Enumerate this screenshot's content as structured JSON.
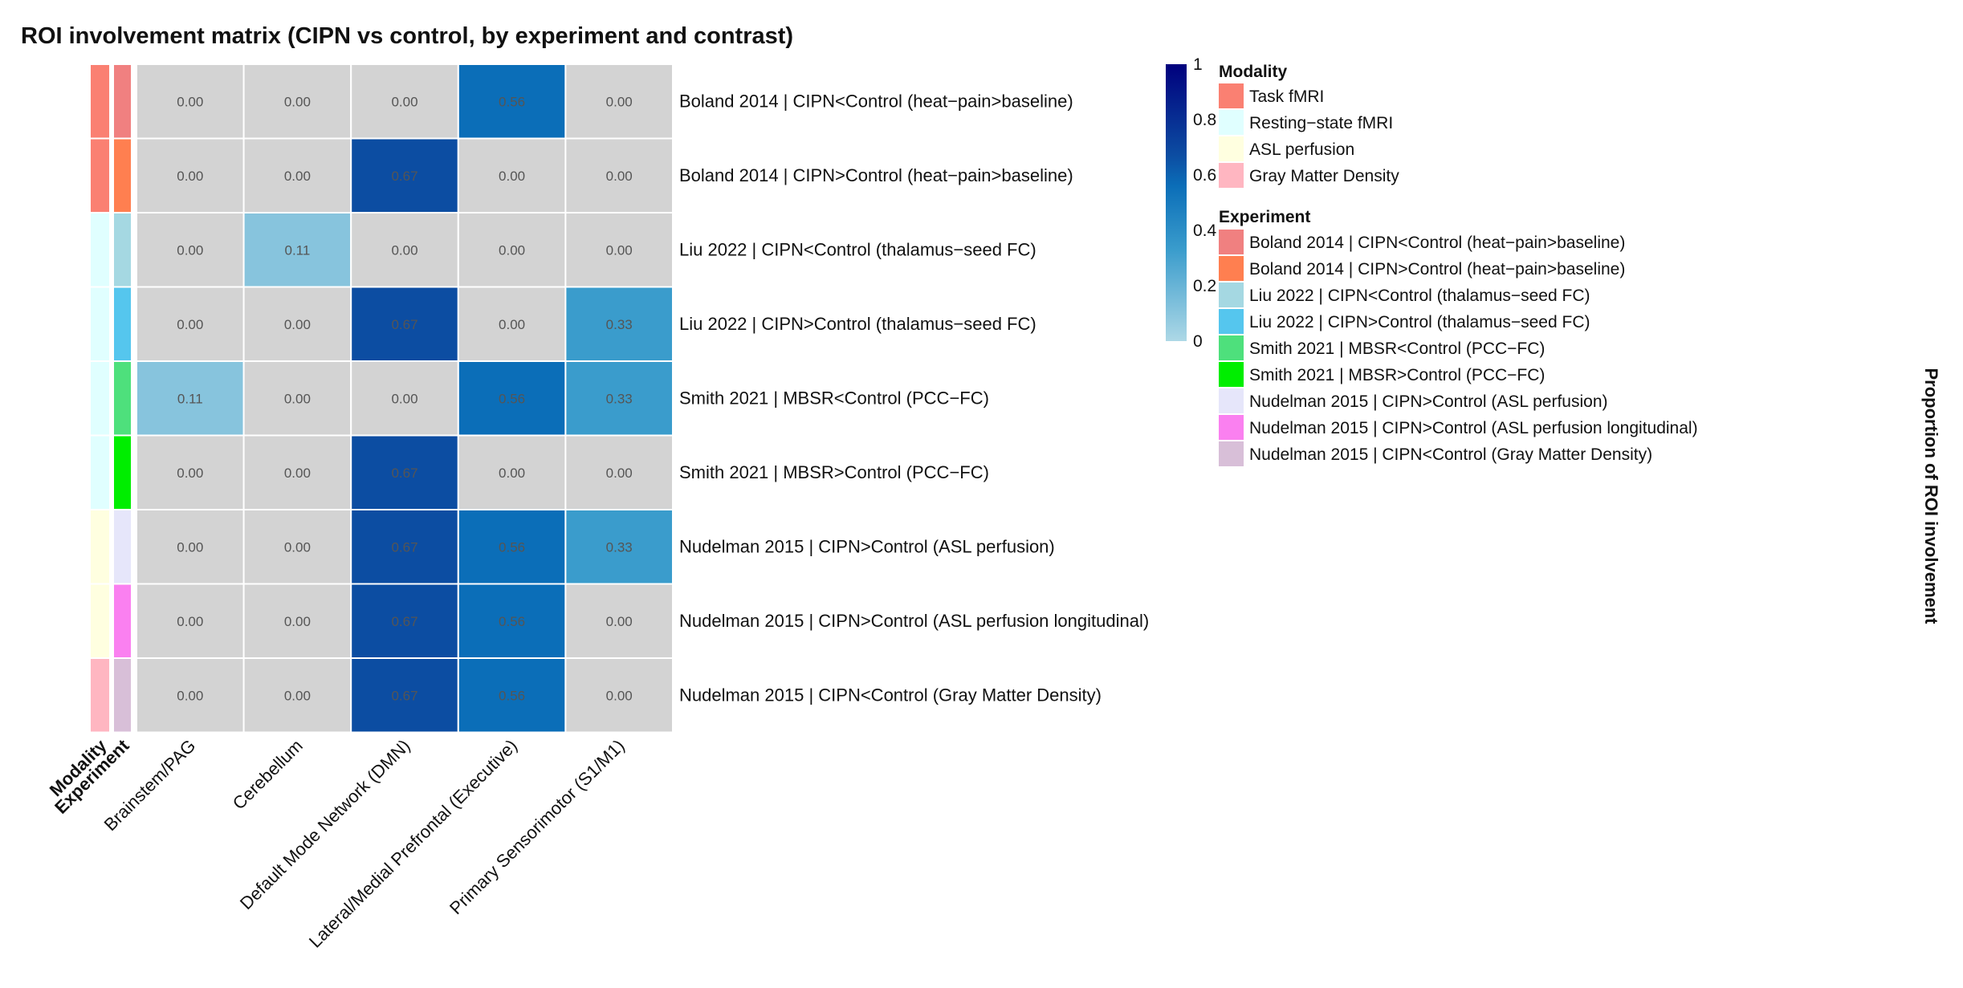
{
  "chart_data": {
    "type": "heatmap",
    "title": "ROI involvement matrix (CIPN vs control, by experiment and contrast)",
    "columns": [
      "Brainstem/PAG",
      "Cerebellum",
      "Default Mode Network (DMN)",
      "Lateral/Medial Prefrontal (Executive)",
      "Primary Sensorimotor (S1/M1)"
    ],
    "rows": [
      {
        "label": "Boland 2014 | CIPN<Control (heat−pain>baseline)",
        "modality": "Task fMRI",
        "experiment": "Boland 2014 | CIPN<Control (heat−pain>baseline)",
        "values": [
          0.0,
          0.0,
          0.0,
          0.56,
          0.0
        ],
        "cell_text": [
          "0.00",
          "0.00",
          "0.00",
          "0.56",
          "0.00"
        ]
      },
      {
        "label": "Boland 2014 | CIPN>Control (heat−pain>baseline)",
        "modality": "Task fMRI",
        "experiment": "Boland 2014 | CIPN>Control (heat−pain>baseline)",
        "values": [
          0.0,
          0.0,
          0.67,
          0.0,
          0.0
        ],
        "cell_text": [
          "0.00",
          "0.00",
          "0.67",
          "0.00",
          "0.00"
        ]
      },
      {
        "label": "Liu 2022 | CIPN<Control (thalamus−seed FC)",
        "modality": "Resting−state fMRI",
        "experiment": "Liu 2022 | CIPN<Control (thalamus−seed FC)",
        "values": [
          0.0,
          0.11,
          0.0,
          0.0,
          0.0
        ],
        "cell_text": [
          "0.00",
          "0.11",
          "0.00",
          "0.00",
          "0.00"
        ]
      },
      {
        "label": "Liu 2022 | CIPN>Control (thalamus−seed FC)",
        "modality": "Resting−state fMRI",
        "experiment": "Liu 2022 | CIPN>Control (thalamus−seed FC)",
        "values": [
          0.0,
          0.0,
          0.67,
          0.0,
          0.33
        ],
        "cell_text": [
          "0.00",
          "0.00",
          "0.67",
          "0.00",
          "0.33"
        ]
      },
      {
        "label": "Smith 2021 | MBSR<Control (PCC−FC)",
        "modality": "Resting−state fMRI",
        "experiment": "Smith 2021 | MBSR<Control (PCC−FC)",
        "values": [
          0.11,
          0.0,
          0.0,
          0.56,
          0.33
        ],
        "cell_text": [
          "0.11",
          "0.00",
          "0.00",
          "0.56",
          "0.33"
        ]
      },
      {
        "label": "Smith 2021 | MBSR>Control (PCC−FC)",
        "modality": "Resting−state fMRI",
        "experiment": "Smith 2021 | MBSR>Control (PCC−FC)",
        "values": [
          0.0,
          0.0,
          0.67,
          0.0,
          0.0
        ],
        "cell_text": [
          "0.00",
          "0.00",
          "0.67",
          "0.00",
          "0.00"
        ]
      },
      {
        "label": "Nudelman 2015 | CIPN>Control (ASL perfusion)",
        "modality": "ASL perfusion",
        "experiment": "Nudelman 2015 | CIPN>Control (ASL perfusion)",
        "values": [
          0.0,
          0.0,
          0.67,
          0.56,
          0.33
        ],
        "cell_text": [
          "0.00",
          "0.00",
          "0.67",
          "0.56",
          "0.33"
        ]
      },
      {
        "label": "Nudelman 2015 | CIPN>Control (ASL perfusion longitudinal)",
        "modality": "ASL perfusion",
        "experiment": "Nudelman 2015 | CIPN>Control (ASL perfusion longitudinal)",
        "values": [
          0.0,
          0.0,
          0.67,
          0.56,
          0.0
        ],
        "cell_text": [
          "0.00",
          "0.00",
          "0.67",
          "0.56",
          "0.00"
        ]
      },
      {
        "label": "Nudelman 2015 | CIPN<Control (Gray Matter Density)",
        "modality": "Gray Matter Density",
        "experiment": "Nudelman 2015 | CIPN<Control (Gray Matter Density)",
        "values": [
          0.0,
          0.0,
          0.67,
          0.56,
          0.0
        ],
        "cell_text": [
          "0.00",
          "0.00",
          "0.67",
          "0.56",
          "0.00"
        ]
      }
    ],
    "annotation_labels": [
      "Modality",
      "Experiment"
    ],
    "zero_color": "#d3d3d3",
    "colorbar": {
      "title": "Proportion of ROI involvement",
      "range": [
        0,
        1
      ],
      "ticks": [
        "0",
        "0.2",
        "0.4",
        "0.6",
        "0.8",
        "1"
      ],
      "tick_values": [
        0,
        0.2,
        0.4,
        0.6,
        0.8,
        1
      ],
      "color_stops": [
        {
          "v": 0.0,
          "c": "#add8e6"
        },
        {
          "v": 0.33,
          "c": "#3a9ccc"
        },
        {
          "v": 0.56,
          "c": "#0b6eb8"
        },
        {
          "v": 0.67,
          "c": "#0c4da2"
        },
        {
          "v": 1.0,
          "c": "#00007d"
        }
      ]
    },
    "legend": {
      "modality_title": "Modality",
      "modality": [
        {
          "label": "Task fMRI",
          "color": "#fa8072"
        },
        {
          "label": "Resting−state fMRI",
          "color": "#e0ffff"
        },
        {
          "label": "ASL perfusion",
          "color": "#ffffe0"
        },
        {
          "label": "Gray Matter Density",
          "color": "#ffb6c1"
        }
      ],
      "experiment_title": "Experiment",
      "experiment": [
        {
          "label": "Boland 2014 | CIPN<Control (heat−pain>baseline)",
          "color": "#f08080"
        },
        {
          "label": "Boland 2014 | CIPN>Control (heat−pain>baseline)",
          "color": "#ff7f50"
        },
        {
          "label": "Liu 2022 | CIPN<Control (thalamus−seed FC)",
          "color": "#a5d8e2"
        },
        {
          "label": "Liu 2022 | CIPN>Control (thalamus−seed FC)",
          "color": "#55c6ee"
        },
        {
          "label": "Smith 2021 | MBSR<Control (PCC−FC)",
          "color": "#4ee07c"
        },
        {
          "label": "Smith 2021 | MBSR>Control (PCC−FC)",
          "color": "#00ee00"
        },
        {
          "label": "Nudelman 2015 | CIPN>Control (ASL perfusion)",
          "color": "#e6e6fa"
        },
        {
          "label": "Nudelman 2015 | CIPN>Control (ASL perfusion longitudinal)",
          "color": "#fa80f0"
        },
        {
          "label": "Nudelman 2015 | CIPN<Control (Gray Matter Density)",
          "color": "#d8bfd8"
        }
      ]
    }
  }
}
